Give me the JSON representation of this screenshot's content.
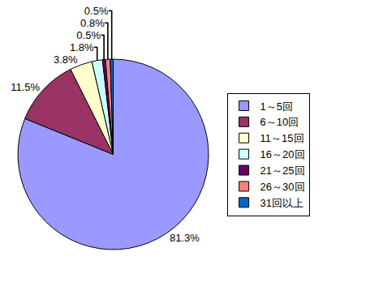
{
  "chart_data": {
    "type": "pie",
    "categories": [
      "1～5回",
      "6～10回",
      "11～15回",
      "16～20回",
      "21～25回",
      "26～30回",
      "31回以上"
    ],
    "values": [
      81.3,
      11.5,
      3.8,
      1.8,
      0.5,
      0.8,
      0.5
    ],
    "value_labels": [
      "81.3%",
      "11.5%",
      "3.8%",
      "1.8%",
      "0.5%",
      "0.8%",
      "0.5%"
    ],
    "colors": [
      "#9999ff",
      "#993366",
      "#ffffcc",
      "#ccffff",
      "#660066",
      "#ff8080",
      "#0066cc"
    ],
    "data_labels": true,
    "legend": "right"
  }
}
